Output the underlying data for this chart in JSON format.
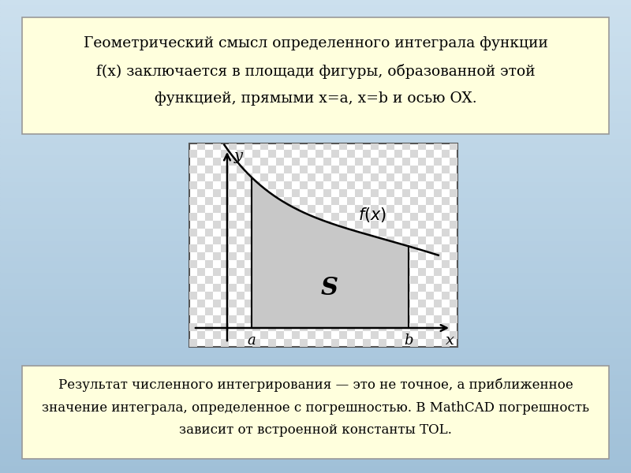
{
  "box_fill": "#ffffdd",
  "box_border": "#999999",
  "top_text_line1": "Геометрический смысл определенного интеграла функции",
  "top_text_line2": "f(x) заключается в площади фигуры, образованной этой",
  "top_text_line3": "функцией, прямыми x=a, x=b и осью OX.",
  "bottom_text_line1": "Результат численного интегрирования — это не точное, а приближенное",
  "bottom_text_line2": "значение интеграла, определенное с погрешностью. В MathCAD погрешность",
  "bottom_text_line3": "зависит от встроенной константы TOL.",
  "bg_color_top": "#b0ccdd",
  "bg_color_bot": "#ccdde8",
  "plot_outer_bg": "#c8dce8",
  "plot_fill_color": "#d0d0d0",
  "checker_light": "#e8e8e8",
  "checker_dark": "#cccccc",
  "curve_color": "#000000",
  "fig_width": 8.0,
  "fig_height": 6.0,
  "dpi": 100
}
